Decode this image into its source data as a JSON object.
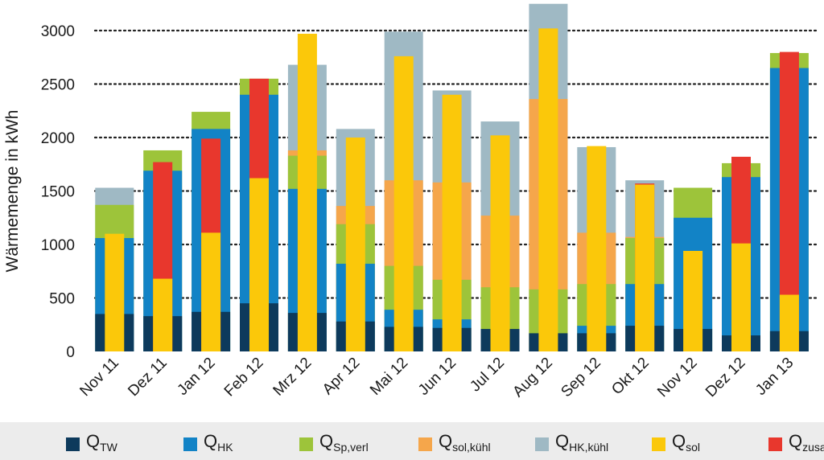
{
  "chart_data": {
    "type": "bar",
    "stacking": "overlay",
    "ylabel": "Wärmemenge in kWh",
    "ylim": [
      0,
      3000
    ],
    "yticks": [
      0,
      500,
      1000,
      1500,
      2000,
      2500,
      3000
    ],
    "grid": "horizontal dotted",
    "legend_position": "bottom",
    "categories": [
      "Nov 11",
      "Dez 11",
      "Jan 12",
      "Feb 12",
      "Mrz 12",
      "Apr 12",
      "Mai 12",
      "Jun 12",
      "Jul 12",
      "Aug 12",
      "Sep 12",
      "Okt 12",
      "Nov 12",
      "Dez 12",
      "Jan 13"
    ],
    "series": [
      {
        "key": "Q_TW",
        "name": "Q",
        "sub": "TW",
        "color": "#0d3a5c",
        "role": "wide",
        "values": [
          350,
          330,
          370,
          450,
          360,
          280,
          230,
          220,
          210,
          170,
          170,
          240,
          210,
          150,
          190
        ]
      },
      {
        "key": "Q_HK",
        "name": "Q",
        "sub": "HK",
        "color": "#1283c6",
        "role": "wide",
        "values": [
          1060,
          1690,
          2080,
          2400,
          1520,
          820,
          390,
          300,
          0,
          0,
          240,
          630,
          1250,
          1630,
          2650
        ]
      },
      {
        "key": "Q_Sp_verl",
        "name": "Q",
        "sub": "Sp,verl",
        "color": "#9dc43a",
        "role": "wide",
        "values": [
          1370,
          1880,
          2240,
          2550,
          1830,
          1190,
          800,
          670,
          600,
          580,
          630,
          1060,
          1530,
          1760,
          2790
        ]
      },
      {
        "key": "Q_sol_kuehl",
        "name": "Q",
        "sub": "sol,kühl",
        "color": "#f5a64b",
        "role": "wide",
        "values": [
          0,
          0,
          0,
          0,
          1880,
          1360,
          1600,
          1580,
          1270,
          2360,
          1110,
          1070,
          0,
          0,
          0
        ]
      },
      {
        "key": "Q_HK_kuehl",
        "name": "Q",
        "sub": "HK,kühl",
        "color": "#9fb9c4",
        "role": "wide",
        "values": [
          1530,
          0,
          0,
          0,
          2680,
          2080,
          2990,
          2440,
          2150,
          3250,
          1910,
          1600,
          0,
          0,
          0
        ]
      },
      {
        "key": "Q_sol",
        "name": "Q",
        "sub": "sol",
        "color": "#fbc80a",
        "role": "narrow",
        "values": [
          1100,
          680,
          1110,
          1620,
          2970,
          2000,
          2760,
          2400,
          2020,
          3020,
          1920,
          1560,
          940,
          1010,
          530
        ]
      },
      {
        "key": "Q_zusatz",
        "name": "Q",
        "sub": "zusatz",
        "color": "#e8372d",
        "role": "narrow",
        "values": [
          0,
          1770,
          1990,
          2550,
          0,
          0,
          0,
          0,
          0,
          0,
          0,
          1570,
          0,
          1820,
          2800
        ]
      }
    ]
  }
}
